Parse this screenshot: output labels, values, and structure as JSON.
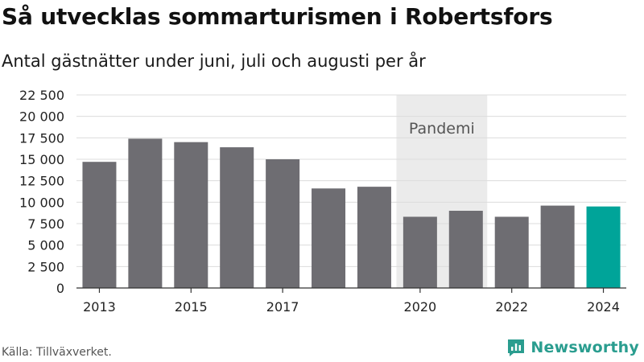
{
  "header": {
    "title": "Så utvecklas sommarturismen i Robertsfors",
    "subtitle": "Antal gästnätter under juni, juli och augusti per år"
  },
  "footer": {
    "source": "Källa: Tillväxverket.",
    "brand": "Newsworthy"
  },
  "colors": {
    "bar": "#6e6d72",
    "highlight": "#00a499",
    "band": "#ebebeb",
    "grid": "#dcdcdc",
    "brand": "#2a9d8f"
  },
  "chart_data": {
    "type": "bar",
    "categories": [
      "2013",
      "2014",
      "2015",
      "2016",
      "2017",
      "2018",
      "2019",
      "2020",
      "2021",
      "2022",
      "2023",
      "2024"
    ],
    "values": [
      14700,
      17400,
      17000,
      16400,
      15000,
      11600,
      11800,
      8300,
      9000,
      8300,
      9600,
      9500
    ],
    "highlight_category": "2024",
    "x_tick_labels": [
      "2013",
      "2015",
      "2017",
      "2020",
      "2022",
      "2024"
    ],
    "y_ticks": [
      0,
      2500,
      5000,
      7500,
      10000,
      12500,
      15000,
      17500,
      20000,
      22500
    ],
    "y_tick_labels": [
      "0",
      "2 500",
      "5 000",
      "7 500",
      "10 000",
      "12 500",
      "15 000",
      "17 500",
      "20 000",
      "22 500"
    ],
    "ylim": [
      0,
      22500
    ],
    "grid": true,
    "annotation": {
      "label": "Pandemi",
      "from_category": "2020",
      "to_category": "2021"
    }
  }
}
